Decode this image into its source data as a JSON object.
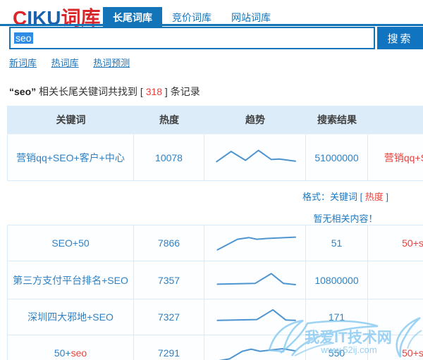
{
  "logo": {
    "c": "C",
    "iku": "IKU",
    "suffix": "词库"
  },
  "tabs": [
    {
      "label": "长尾词库",
      "active": true
    },
    {
      "label": "竞价词库",
      "active": false
    },
    {
      "label": "网站词库",
      "active": false
    }
  ],
  "search": {
    "value": "seo",
    "button": "搜索"
  },
  "nav": [
    {
      "label": "新词库"
    },
    {
      "label": "热词库"
    },
    {
      "label": "热词预测"
    }
  ],
  "summary": {
    "keyword": "“seo”",
    "mid": " 相关长尾关键词共找到 [ ",
    "count": "318",
    "tail": " ] 条记录"
  },
  "table": {
    "headers": [
      "关键词",
      "热度",
      "趋势",
      "搜索结果",
      ""
    ],
    "rows": [
      {
        "keyword_parts": [
          {
            "t": "营销qq+SEO+客户+中心",
            "hl": false
          }
        ],
        "heat": "10078",
        "trend": [
          [
            2,
            68
          ],
          [
            20,
            20
          ],
          [
            38,
            62
          ],
          [
            54,
            15
          ],
          [
            70,
            58
          ],
          [
            80,
            56
          ],
          [
            100,
            66
          ]
        ],
        "result": "51000000",
        "related": "营销qq+SEO"
      },
      {
        "keyword_parts": [
          {
            "t": "SEO+50",
            "hl": false
          }
        ],
        "heat": "7866",
        "trend": [
          [
            3,
            82
          ],
          [
            28,
            32
          ],
          [
            42,
            24
          ],
          [
            52,
            32
          ],
          [
            66,
            28
          ],
          [
            100,
            22
          ]
        ],
        "result": "51",
        "related": "50+s"
      },
      {
        "keyword_parts": [
          {
            "t": "第三方支付平台排名+SEO",
            "hl": false
          }
        ],
        "heat": "7357",
        "trend": [
          [
            3,
            68
          ],
          [
            50,
            64
          ],
          [
            70,
            18
          ],
          [
            85,
            64
          ],
          [
            100,
            70
          ]
        ],
        "result": "10800000",
        "related": ""
      },
      {
        "keyword_parts": [
          {
            "t": "深圳四大邪地+SEO",
            "hl": false
          }
        ],
        "heat": "7327",
        "trend": [
          [
            3,
            66
          ],
          [
            52,
            62
          ],
          [
            72,
            16
          ],
          [
            88,
            64
          ],
          [
            100,
            66
          ]
        ],
        "result": "171",
        "related": ""
      },
      {
        "keyword_parts": [
          {
            "t": "50+",
            "hl": false
          },
          {
            "t": "seo",
            "hl": true
          }
        ],
        "heat": "7291",
        "trend": [
          [
            3,
            88
          ],
          [
            18,
            78
          ],
          [
            34,
            42
          ],
          [
            45,
            32
          ],
          [
            56,
            42
          ],
          [
            70,
            36
          ],
          [
            84,
            30
          ],
          [
            100,
            40
          ]
        ],
        "result": "550",
        "related": "50+s"
      }
    ]
  },
  "notice": {
    "format_prefix": "格式：关键词 [ ",
    "format_highlight": "热度",
    "format_suffix": " ]",
    "empty_text": "暂无相关内容！"
  },
  "watermark": {
    "title": "我爱IT技术网",
    "url": "www.52ij.com"
  },
  "colors": {
    "accent": "#1474b8",
    "link_blue": "#2f81c3",
    "highlight_red": "#e8413c",
    "header_bg": "#dcedf9",
    "spark_line": "#4e94cf",
    "watermark_blue": "#7ec4f0"
  }
}
